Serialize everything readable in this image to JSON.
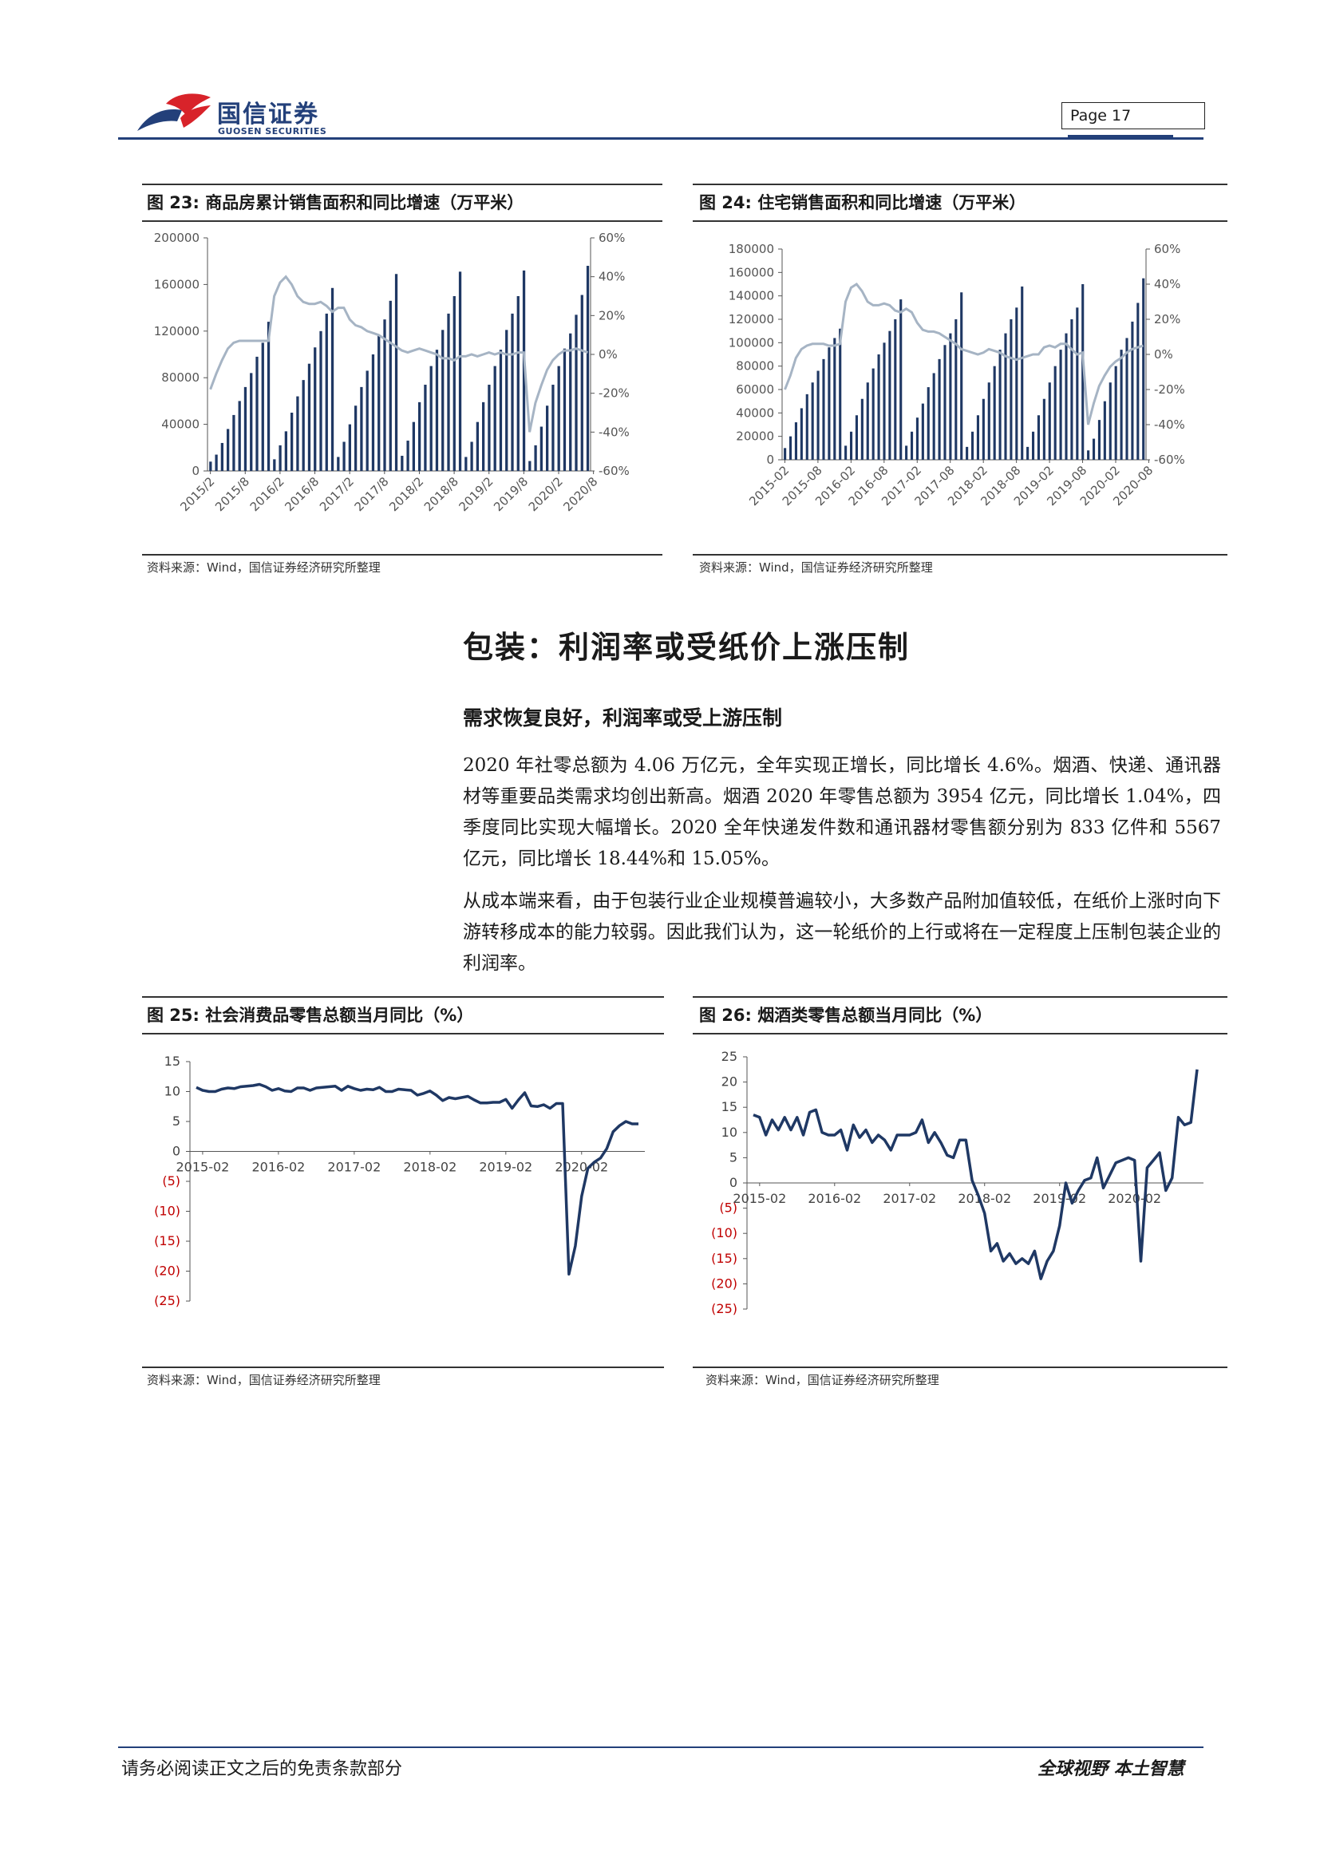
{
  "header": {
    "brand_cn": "国信证券",
    "brand_en": "GUOSEN SECURITIES",
    "page_label": "Page  17",
    "colors": {
      "brand": "#23407a",
      "logo_red": "#d8232a"
    }
  },
  "figures": [
    {
      "num": "图 23:",
      "title": "商品房累计销售面积和同比增速（万平米）",
      "source": "资料来源：Wind，国信证券经济研究所整理"
    },
    {
      "num": "图 24:",
      "title": "住宅销售面积和同比增速（万平米）",
      "source": "资料来源：Wind，国信证券经济研究所整理"
    },
    {
      "num": "图 25:",
      "title": "社会消费品零售总额当月同比（%）",
      "source": "资料来源：Wind，国信证券经济研究所整理"
    },
    {
      "num": "图 26:",
      "title": "烟酒类零售总额当月同比（%）",
      "source": "资料来源：Wind，国信证券经济研究所整理"
    }
  ],
  "section": {
    "heading": "包装：利润率或受纸价上涨压制",
    "subheading": "需求恢复良好，利润率或受上游压制",
    "paragraphs": [
      "2020 年社零总额为 4.06 万亿元，全年实现正增长，同比增长 4.6%。烟酒、快递、通讯器材等重要品类需求均创出新高。烟酒 2020 年零售总额为 3954 亿元，同比增长 1.04%，四季度同比实现大幅增长。2020 全年快递发件数和通讯器材零售额分别为 833 亿件和 5567 亿元，同比增长 18.44%和 15.05%。",
      "从成本端来看，由于包装行业企业规模普遍较小，大多数产品附加值较低，在纸价上涨时向下游转移成本的能力较弱。因此我们认为，这一轮纸价的上行或将在一定程度上压制包装企业的利润率。"
    ]
  },
  "footer": {
    "disclaimer": "请务必阅读正文之后的免责条款部分",
    "slogan": "全球视野  本土智慧"
  },
  "chart_data": [
    {
      "type": "bar+line",
      "title": "商品房累计销售面积和同比增速（万平米）",
      "ylim_left": [
        0,
        200000
      ],
      "yticks_left": [
        "0",
        "40000",
        "80000",
        "120000",
        "160000",
        "200000"
      ],
      "ylim_right": [
        -60,
        60
      ],
      "yticks_right": [
        "-60%",
        "-40%",
        "-20%",
        "0%",
        "20%",
        "40%",
        "60%"
      ],
      "xticks": [
        "2015/2",
        "2015/8",
        "2016/2",
        "2016/8",
        "2017/2",
        "2017/8",
        "2018/2",
        "2018/8",
        "2019/2",
        "2019/8",
        "2020/2",
        "2020/8"
      ],
      "bar_color": "#1f3864",
      "line_color": "#a6b4c4",
      "bars": [
        8000,
        14000,
        24000,
        36000,
        48000,
        60000,
        72000,
        84000,
        98000,
        110000,
        128000,
        10000,
        22000,
        34000,
        50000,
        64000,
        78000,
        92000,
        106000,
        120000,
        135000,
        157000,
        12000,
        25000,
        40000,
        56000,
        72000,
        86000,
        100000,
        116000,
        130000,
        146000,
        169000,
        13000,
        26000,
        42000,
        59000,
        74000,
        90000,
        104000,
        121000,
        135000,
        150000,
        171000,
        12000,
        25000,
        42000,
        59000,
        74000,
        90000,
        104000,
        121000,
        135000,
        150000,
        172000,
        8500,
        22000,
        38000,
        56000,
        74000,
        90000,
        105000,
        118000,
        134000,
        151000,
        176000
      ],
      "line": [
        -18,
        -10,
        -3,
        3,
        6,
        7,
        7,
        7,
        7,
        7,
        7,
        30,
        37,
        40,
        36,
        30,
        27,
        26,
        26,
        27,
        25,
        22,
        24,
        24,
        18,
        15,
        14,
        12,
        11,
        10,
        8,
        6,
        4,
        2,
        1,
        2,
        3,
        2,
        1,
        0,
        -2,
        -2,
        -3,
        -1,
        -1,
        0,
        -1,
        0,
        1,
        0,
        1,
        0,
        0,
        1,
        1,
        -40,
        -25,
        -16,
        -8,
        -3,
        0,
        2,
        2,
        3,
        2,
        1
      ]
    },
    {
      "type": "bar+line",
      "title": "住宅销售面积和同比增速（万平米）",
      "ylim_left": [
        0,
        180000
      ],
      "yticks_left": [
        "0",
        "20000",
        "40000",
        "60000",
        "80000",
        "100000",
        "120000",
        "140000",
        "160000",
        "180000"
      ],
      "ylim_right": [
        -60,
        60
      ],
      "yticks_right": [
        "-60%",
        "-40%",
        "-20%",
        "0%",
        "20%",
        "40%",
        "60%"
      ],
      "xticks": [
        "2015-02",
        "2015-08",
        "2016-02",
        "2016-08",
        "2017-02",
        "2017-08",
        "2018-02",
        "2018-08",
        "2019-02",
        "2019-08",
        "2020-02",
        "2020-08"
      ],
      "bar_color": "#1f3864",
      "line_color": "#a6b4c4",
      "bars": [
        10000,
        20000,
        32000,
        44000,
        56000,
        66000,
        76000,
        86000,
        96000,
        104000,
        112000,
        12000,
        24000,
        38000,
        52000,
        66000,
        78000,
        90000,
        100000,
        110000,
        120000,
        137000,
        12000,
        24000,
        36000,
        48000,
        62000,
        74000,
        86000,
        98000,
        108000,
        120000,
        143000,
        11000,
        24000,
        38000,
        52000,
        66000,
        80000,
        94000,
        108000,
        120000,
        130000,
        148000,
        11000,
        24000,
        38000,
        52000,
        66000,
        80000,
        94000,
        108000,
        120000,
        130000,
        150000,
        8000,
        18000,
        34000,
        50000,
        66000,
        80000,
        94000,
        104000,
        118000,
        134000,
        155000
      ],
      "line": [
        -20,
        -12,
        -2,
        3,
        5,
        6,
        6,
        6,
        5,
        5,
        6,
        30,
        38,
        40,
        36,
        30,
        28,
        28,
        29,
        28,
        25,
        24,
        26,
        24,
        18,
        14,
        13,
        13,
        12,
        10,
        8,
        6,
        3,
        2,
        1,
        0,
        1,
        3,
        2,
        1,
        -1,
        -2,
        -3,
        -2,
        -1,
        0,
        0,
        4,
        5,
        4,
        6,
        6,
        3,
        0,
        1,
        -40,
        -28,
        -18,
        -12,
        -7,
        -4,
        -2,
        1,
        3,
        4,
        5
      ]
    },
    {
      "type": "line",
      "title": "社会消费品零售总额当月同比（%）",
      "ylim": [
        -25,
        15
      ],
      "yticks": [
        "15",
        "10",
        "5",
        "0",
        "(5)",
        "(10)",
        "(15)",
        "(20)",
        "(25)"
      ],
      "xticks": [
        "2015-02",
        "2016-02",
        "2017-02",
        "2018-02",
        "2019-02",
        "2020-02"
      ],
      "line_color": "#1f3864",
      "negative_label_color": "#c00000",
      "x_start": "2015-01",
      "values": [
        10.7,
        10.2,
        10.0,
        10.0,
        10.4,
        10.6,
        10.5,
        10.8,
        10.9,
        11.0,
        11.2,
        10.8,
        10.2,
        10.5,
        10.1,
        10.0,
        10.6,
        10.6,
        10.2,
        10.6,
        10.7,
        10.8,
        10.9,
        10.2,
        10.9,
        10.5,
        10.2,
        10.4,
        10.3,
        10.7,
        10.0,
        10.0,
        10.4,
        10.3,
        10.2,
        9.4,
        9.7,
        10.1,
        9.4,
        8.5,
        9.0,
        8.8,
        9.0,
        9.2,
        8.6,
        8.1,
        8.1,
        8.2,
        8.2,
        8.7,
        7.2,
        8.6,
        9.8,
        7.6,
        7.5,
        7.8,
        7.2,
        8.0,
        8.0,
        -20.5,
        -15.8,
        -7.5,
        -2.8,
        -1.8,
        -1.1,
        0.5,
        3.3,
        4.3,
        5.0,
        4.6,
        4.6
      ]
    },
    {
      "type": "line",
      "title": "烟酒类零售总额当月同比（%）",
      "ylim": [
        -25,
        25
      ],
      "yticks": [
        "25",
        "20",
        "15",
        "10",
        "5",
        "0",
        "(5)",
        "(10)",
        "(15)",
        "(20)",
        "(25)"
      ],
      "xticks": [
        "2015-02",
        "2016-02",
        "2017-02",
        "2018-02",
        "2019-02",
        "2020-02"
      ],
      "line_color": "#1f3864",
      "negative_label_color": "#c00000",
      "x_start": "2015-01",
      "values": [
        13.5,
        13.0,
        9.5,
        12.5,
        10.5,
        13.0,
        10.5,
        13.0,
        9.5,
        14.0,
        14.5,
        10.0,
        9.5,
        9.5,
        10.5,
        6.5,
        11.5,
        9.0,
        10.5,
        8.0,
        9.5,
        8.5,
        6.5,
        9.5,
        9.5,
        9.5,
        10.0,
        12.5,
        8.0,
        10.0,
        8.0,
        5.5,
        5.0,
        8.5,
        8.5,
        0.5,
        -2.5,
        -6.0,
        -13.5,
        -12.0,
        -15.5,
        -14.0,
        -16.0,
        -15.0,
        -16.0,
        -13.5,
        -19.0,
        -15.5,
        -13.5,
        -8.5,
        0.0,
        -4.0,
        -1.5,
        0.5,
        1.0,
        5.0,
        -1.0,
        1.5,
        4.0,
        4.5,
        5.0,
        4.5,
        -15.5,
        3.0,
        4.5,
        6.0,
        -1.5,
        1.0,
        13.0,
        11.5,
        12.0,
        22.5
      ]
    }
  ]
}
